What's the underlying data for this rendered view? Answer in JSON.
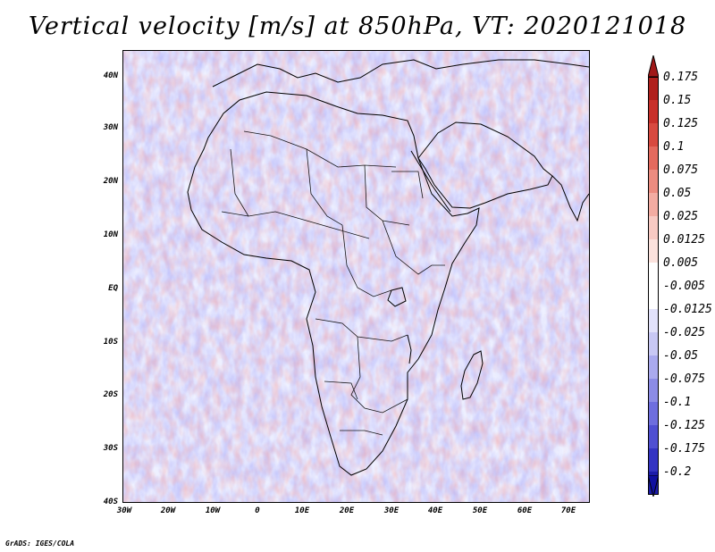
{
  "title": "Vertical velocity [m/s] at 850hPa, VT: 2020121018",
  "credit": "GrADS: IGES/COLA",
  "axes": {
    "y_ticks": [
      "40N",
      "30N",
      "20N",
      "10N",
      "EQ",
      "10S",
      "20S",
      "30S",
      "40S"
    ],
    "x_ticks": [
      "30W",
      "20W",
      "10W",
      "0",
      "10E",
      "20E",
      "30E",
      "40E",
      "50E",
      "60E",
      "70E"
    ]
  },
  "colorbar": {
    "levels": [
      {
        "label": "0.175",
        "color": "#b0201c"
      },
      {
        "label": "0.15",
        "color": "#c8302a"
      },
      {
        "label": "0.125",
        "color": "#d84a40"
      },
      {
        "label": "0.1",
        "color": "#e46a5e"
      },
      {
        "label": "0.075",
        "color": "#ec8c80"
      },
      {
        "label": "0.05",
        "color": "#f3aca2"
      },
      {
        "label": "0.025",
        "color": "#f8cac3"
      },
      {
        "label": "0.0125",
        "color": "#fbe2dd"
      },
      {
        "label": "0.005",
        "color": "#ffffff"
      },
      {
        "label": "-0.005",
        "color": "#ffffff"
      },
      {
        "label": "-0.0125",
        "color": "#e2e2fa"
      },
      {
        "label": "-0.025",
        "color": "#c8c8f4"
      },
      {
        "label": "-0.05",
        "color": "#aaaaee"
      },
      {
        "label": "-0.075",
        "color": "#8c8ce6"
      },
      {
        "label": "-0.1",
        "color": "#6e6ede"
      },
      {
        "label": "-0.125",
        "color": "#5050d2"
      },
      {
        "label": "-0.175",
        "color": "#3434c2"
      },
      {
        "label": "-0.2",
        "color": "#1c1caa"
      }
    ],
    "top_color": "#a01818",
    "bottom_color": "#1010a0"
  }
}
